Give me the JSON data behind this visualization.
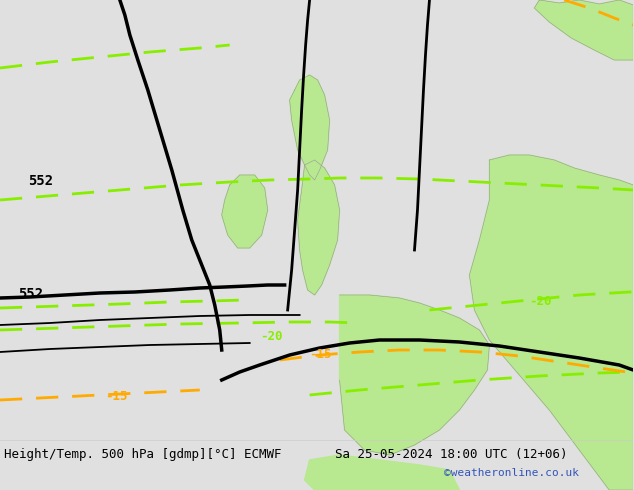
{
  "title_left": "Height/Temp. 500 hPa [gdmp][°C] ECMWF",
  "title_right": "Sa 25-05-2024 18:00 UTC (12+06)",
  "credit": "©weatheronline.co.uk",
  "background_color": "#e0e0e0",
  "land_color": "#b8e890",
  "sea_color": "#e0e0e0",
  "coast_color": "#999999",
  "height_contour_color": "#000000",
  "temp_green": "#88ee00",
  "temp_orange": "#ffaa00",
  "font_size_labels": 9,
  "font_size_title": 9,
  "fig_width": 6.34,
  "fig_height": 4.9,
  "dpi": 100,
  "xlim": [
    -20,
    20
  ],
  "ylim": [
    44,
    66
  ]
}
